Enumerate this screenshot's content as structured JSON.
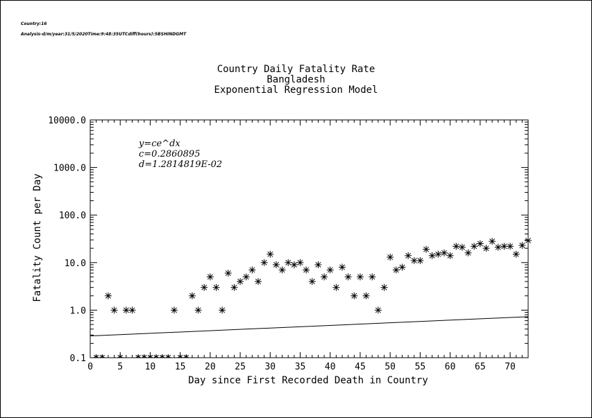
{
  "header": {
    "line1": "Country:16",
    "line2": "Analysis-d/m/year:31/5/2020Time:9:48:35UTCdiff(hours):5BSHINDGMT"
  },
  "chart_data": {
    "type": "scatter",
    "title": "Country Daily Fatality Rate",
    "subtitle": "Bangladesh",
    "subtitle2": "Exponential Regression Model",
    "xlabel": "Day since First Recorded Death in Country",
    "ylabel": "Fatality Count per Day",
    "xlim": [
      0,
      73
    ],
    "ylim": [
      0.1,
      10000
    ],
    "yscale": "log",
    "xticks": [
      0,
      5,
      10,
      15,
      20,
      25,
      30,
      35,
      40,
      45,
      50,
      55,
      60,
      65,
      70
    ],
    "yticks": [
      0.1,
      1.0,
      10.0,
      100.0,
      1000.0,
      10000.0
    ],
    "ytick_labels": [
      "0.1",
      "1.0",
      "10.0",
      "100.0",
      "1000.0",
      "10000.0"
    ],
    "equation": {
      "formula": "y=ce^dx",
      "c_line": "c=0.2860895",
      "d_line": "d=1.2814819E-02"
    },
    "fit": {
      "c": 0.2860895,
      "d": 0.012814819,
      "x_range": [
        0,
        73
      ]
    },
    "series": [
      {
        "marker": "asterisk",
        "x": [
          3,
          4,
          6,
          7,
          14,
          17,
          18,
          19,
          20,
          21,
          22,
          23,
          24,
          25,
          26,
          27,
          28,
          29,
          30,
          31,
          32,
          33,
          34,
          35,
          36,
          37,
          38,
          39,
          40,
          41,
          42,
          43,
          44,
          45,
          46,
          47,
          48,
          49,
          50,
          51,
          52,
          53,
          54,
          55,
          56,
          57,
          58,
          59,
          60,
          61,
          62,
          63,
          64,
          65,
          66,
          67,
          68,
          69,
          70,
          71,
          72,
          73
        ],
        "y": [
          2,
          1,
          1,
          1,
          1,
          2,
          1,
          3,
          5,
          3,
          1,
          6,
          3,
          4,
          5,
          7,
          4,
          10,
          15,
          9,
          7,
          10,
          9,
          10,
          7,
          4,
          9,
          5,
          7,
          3,
          8,
          5,
          2,
          5,
          2,
          5,
          1,
          3,
          13,
          7,
          8,
          14,
          11,
          11,
          19,
          14,
          15,
          16,
          14,
          22,
          21,
          16,
          22,
          25,
          20,
          28,
          21,
          22,
          22,
          15,
          23,
          29
        ]
      },
      {
        "marker": "asterisk-clipped-at-axis",
        "x": [
          1,
          2,
          5,
          8,
          9,
          10,
          11,
          12,
          13,
          15,
          16
        ],
        "y": [
          0.1,
          0.1,
          0.1,
          0.1,
          0.1,
          0.1,
          0.1,
          0.1,
          0.1,
          0.1,
          0.1
        ]
      }
    ]
  }
}
